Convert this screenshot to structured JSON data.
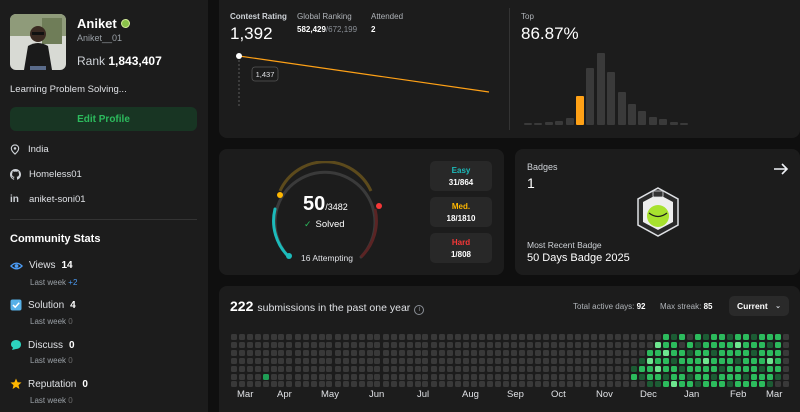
{
  "profile": {
    "name": "Aniket",
    "username": "Aniket__01",
    "rank_label": "Rank",
    "rank_value": "1,843,407",
    "bio": "Learning Problem Solving...",
    "edit_button": "Edit Profile",
    "location": "India",
    "github": "Homeless01",
    "linkedin": "aniket-soni01"
  },
  "community": {
    "title": "Community Stats",
    "stats": [
      {
        "label": "Views",
        "value": "14",
        "week_label": "Last week",
        "week_value": "+2",
        "icon": "eye-icon",
        "color": "#4c9cf5"
      },
      {
        "label": "Solution",
        "value": "4",
        "week_label": "Last week",
        "week_value": "0",
        "icon": "check-square-icon",
        "color": "#56b0e8"
      },
      {
        "label": "Discuss",
        "value": "0",
        "week_label": "Last week",
        "week_value": "0",
        "icon": "chat-bubble-icon",
        "color": "#2dd4bf"
      },
      {
        "label": "Reputation",
        "value": "0",
        "week_label": "Last week",
        "week_value": "0",
        "icon": "star-icon",
        "color": "#ffb700"
      }
    ]
  },
  "contest": {
    "rating_label": "Contest Rating",
    "rating_value": "1,392",
    "global_label": "Global Ranking",
    "global_value": "582,429",
    "global_total": "/672,199",
    "attended_label": "Attended",
    "attended_value": "2",
    "tooltip_value": "1,437",
    "top_label": "Top",
    "top_value": "86.87%"
  },
  "chart_data": {
    "type": "line",
    "series": [
      {
        "values": [
          1437,
          1392
        ]
      }
    ],
    "tooltip": "1,437"
  },
  "histogram": {
    "type": "bar",
    "values": [
      1,
      1,
      2,
      3,
      5,
      21,
      41,
      52,
      38,
      24,
      15,
      10,
      6,
      4,
      2,
      1
    ],
    "highlight_index": 5,
    "max": 52
  },
  "solved": {
    "count": "50",
    "total": "/3482",
    "solved_label": "Solved",
    "attempting": "16 Attempting",
    "easy_label": "Easy",
    "easy_value": "31/864",
    "med_label": "Med.",
    "med_value": "18/1810",
    "hard_label": "Hard",
    "hard_value": "1/808",
    "colors": {
      "easy": "#1cbaba",
      "med": "#ffb700",
      "hard": "#f63737"
    }
  },
  "badges": {
    "title": "Badges",
    "count": "1",
    "recent_label": "Most Recent Badge",
    "recent_name": "50 Days Badge 2025"
  },
  "submissions": {
    "count": "222",
    "text": "submissions in the past one year",
    "active_label": "Total active days:",
    "active_value": "92",
    "streak_label": "Max streak:",
    "streak_value": "85",
    "dropdown": "Current",
    "months": [
      "Mar",
      "Apr",
      "May",
      "Jun",
      "Jul",
      "Aug",
      "Sep",
      "Oct",
      "Nov",
      "Dec",
      "Jan",
      "Feb",
      "Mar"
    ]
  }
}
